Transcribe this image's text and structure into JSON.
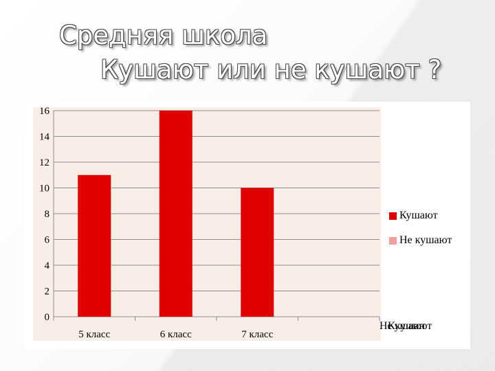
{
  "slide": {
    "title_line1": "Средняя школа",
    "title_line2": "Кушают или не кушают ?"
  },
  "chart_data": {
    "type": "bar",
    "categories": [
      "5 класс",
      "6 класс",
      "7 класс"
    ],
    "series": [
      {
        "name": "Кушают",
        "values": [
          11,
          16,
          10
        ],
        "color": "#e00000"
      },
      {
        "name": "Не кушают",
        "values": [
          null,
          null,
          null
        ],
        "color": "#f59c9c"
      }
    ],
    "ylim": [
      0,
      16
    ],
    "yticks": [
      "0",
      "2",
      "4",
      "6",
      "8",
      "10",
      "12",
      "14",
      "16"
    ],
    "grid": true,
    "legend_position": "right",
    "plot_background": "#f8eee7",
    "extra_axis_labels": [
      "Не кушают",
      "Кушают"
    ]
  }
}
